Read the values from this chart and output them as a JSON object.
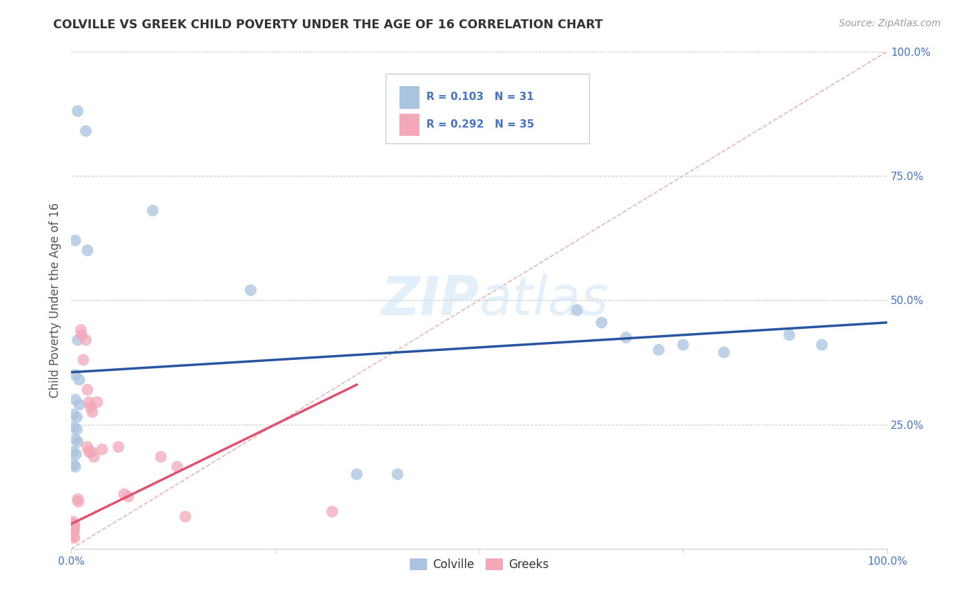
{
  "title": "COLVILLE VS GREEK CHILD POVERTY UNDER THE AGE OF 16 CORRELATION CHART",
  "source": "Source: ZipAtlas.com",
  "ylabel": "Child Poverty Under the Age of 16",
  "xlim": [
    0,
    1
  ],
  "ylim": [
    0,
    1
  ],
  "watermark": "ZIPatlas",
  "colville_color": "#a8c4e0",
  "greek_color": "#f4a7b9",
  "colville_R": 0.103,
  "colville_N": 31,
  "greek_R": 0.292,
  "greek_N": 35,
  "colville_points": [
    [
      0.008,
      0.88
    ],
    [
      0.018,
      0.84
    ],
    [
      0.005,
      0.62
    ],
    [
      0.02,
      0.6
    ],
    [
      0.1,
      0.68
    ],
    [
      0.22,
      0.52
    ],
    [
      0.008,
      0.42
    ],
    [
      0.005,
      0.35
    ],
    [
      0.01,
      0.34
    ],
    [
      0.005,
      0.3
    ],
    [
      0.01,
      0.29
    ],
    [
      0.003,
      0.27
    ],
    [
      0.007,
      0.265
    ],
    [
      0.003,
      0.245
    ],
    [
      0.007,
      0.24
    ],
    [
      0.005,
      0.22
    ],
    [
      0.008,
      0.215
    ],
    [
      0.003,
      0.195
    ],
    [
      0.006,
      0.19
    ],
    [
      0.003,
      0.17
    ],
    [
      0.005,
      0.165
    ],
    [
      0.35,
      0.15
    ],
    [
      0.4,
      0.15
    ],
    [
      0.62,
      0.48
    ],
    [
      0.65,
      0.455
    ],
    [
      0.68,
      0.425
    ],
    [
      0.72,
      0.4
    ],
    [
      0.75,
      0.41
    ],
    [
      0.8,
      0.395
    ],
    [
      0.88,
      0.43
    ],
    [
      0.92,
      0.41
    ]
  ],
  "greek_points": [
    [
      0.002,
      0.055
    ],
    [
      0.003,
      0.05
    ],
    [
      0.004,
      0.048
    ],
    [
      0.002,
      0.045
    ],
    [
      0.003,
      0.042
    ],
    [
      0.004,
      0.04
    ],
    [
      0.001,
      0.038
    ],
    [
      0.002,
      0.035
    ],
    [
      0.003,
      0.032
    ],
    [
      0.002,
      0.028
    ],
    [
      0.003,
      0.025
    ],
    [
      0.004,
      0.022
    ],
    [
      0.008,
      0.1
    ],
    [
      0.009,
      0.095
    ],
    [
      0.012,
      0.44
    ],
    [
      0.013,
      0.43
    ],
    [
      0.015,
      0.38
    ],
    [
      0.018,
      0.42
    ],
    [
      0.02,
      0.32
    ],
    [
      0.022,
      0.295
    ],
    [
      0.024,
      0.285
    ],
    [
      0.026,
      0.275
    ],
    [
      0.02,
      0.205
    ],
    [
      0.022,
      0.195
    ],
    [
      0.025,
      0.195
    ],
    [
      0.028,
      0.185
    ],
    [
      0.032,
      0.295
    ],
    [
      0.038,
      0.2
    ],
    [
      0.058,
      0.205
    ],
    [
      0.065,
      0.11
    ],
    [
      0.07,
      0.105
    ],
    [
      0.11,
      0.185
    ],
    [
      0.13,
      0.165
    ],
    [
      0.14,
      0.065
    ],
    [
      0.32,
      0.075
    ]
  ],
  "colville_line_color": "#2855a0",
  "greek_line_color": "#e05070",
  "diagonal_color": "#e8b4b8",
  "diagonal_style": "--"
}
